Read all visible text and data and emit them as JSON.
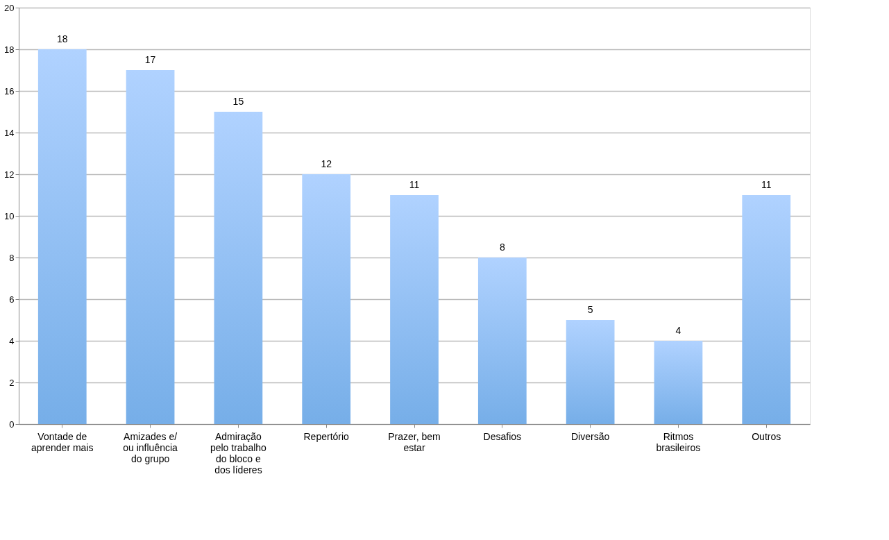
{
  "chart_data": {
    "type": "bar",
    "categories": [
      "Vontade de aprender mais",
      "Amizades e/ ou influência do grupo",
      "Admiração pelo trabalho do bloco e dos líderes",
      "Repertório",
      "Prazer, bem estar",
      "Desafios",
      "Diversão",
      "Ritmos brasileiros",
      "Outros"
    ],
    "values": [
      18,
      17,
      15,
      12,
      11,
      8,
      5,
      4,
      11
    ],
    "color": "#76aee8",
    "ylim": [
      0,
      20
    ],
    "yticks": [
      0,
      2,
      4,
      6,
      8,
      10,
      12,
      14,
      16,
      18,
      20
    ],
    "grid": "y",
    "data_labels": true
  }
}
